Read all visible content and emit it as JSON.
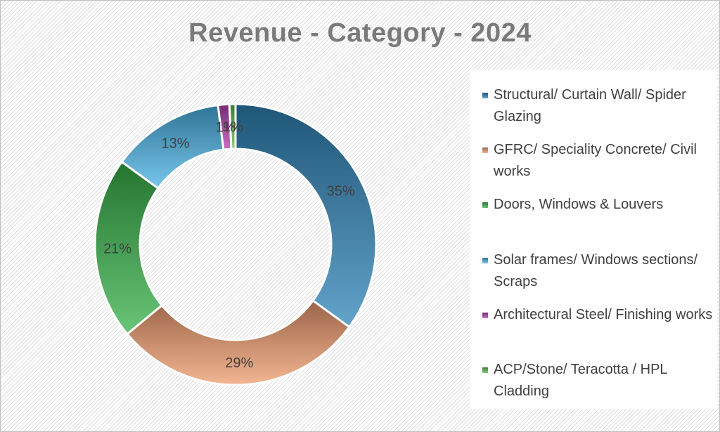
{
  "chart_data": {
    "type": "donut",
    "title": "Revenue - Category - 2024",
    "categories": [
      "Structural/ Curtain Wall/ Spider Glazing",
      "GFRC/ Speciality Concrete/ Civil works",
      "Doors, Windows & Louvers",
      "Solar frames/ Windows sections/ Scraps",
      "Architectural Steel/ Finishing works",
      "ACP/Stone/ Teracotta / HPL Cladding"
    ],
    "values": [
      35,
      29,
      21,
      13,
      1.3,
      0.7
    ],
    "data_labels": [
      "35%",
      "29%",
      "21%",
      "13%",
      "1%",
      "1%"
    ],
    "colors": [
      "#2f84b8",
      "#ef9c6e",
      "#37b24a",
      "#4ab3e6",
      "#b63fb1",
      "#5cbf4e"
    ],
    "legend_position": "right"
  }
}
